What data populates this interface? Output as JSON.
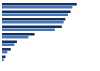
{
  "chart_data": {
    "type": "bar",
    "orientation": "horizontal",
    "tick_labels": false,
    "grid": false,
    "categories": [
      null,
      null,
      null,
      null,
      null,
      null,
      null,
      null
    ],
    "xlim": [
      0,
      100
    ],
    "series": [
      {
        "color": "#1b2f55",
        "values": [
          85,
          78,
          72,
          68,
          37,
          17,
          10,
          4
        ]
      },
      {
        "color": "#3a78c3",
        "values": [
          80,
          75,
          70,
          60,
          30,
          14,
          6,
          2
        ]
      }
    ]
  }
}
